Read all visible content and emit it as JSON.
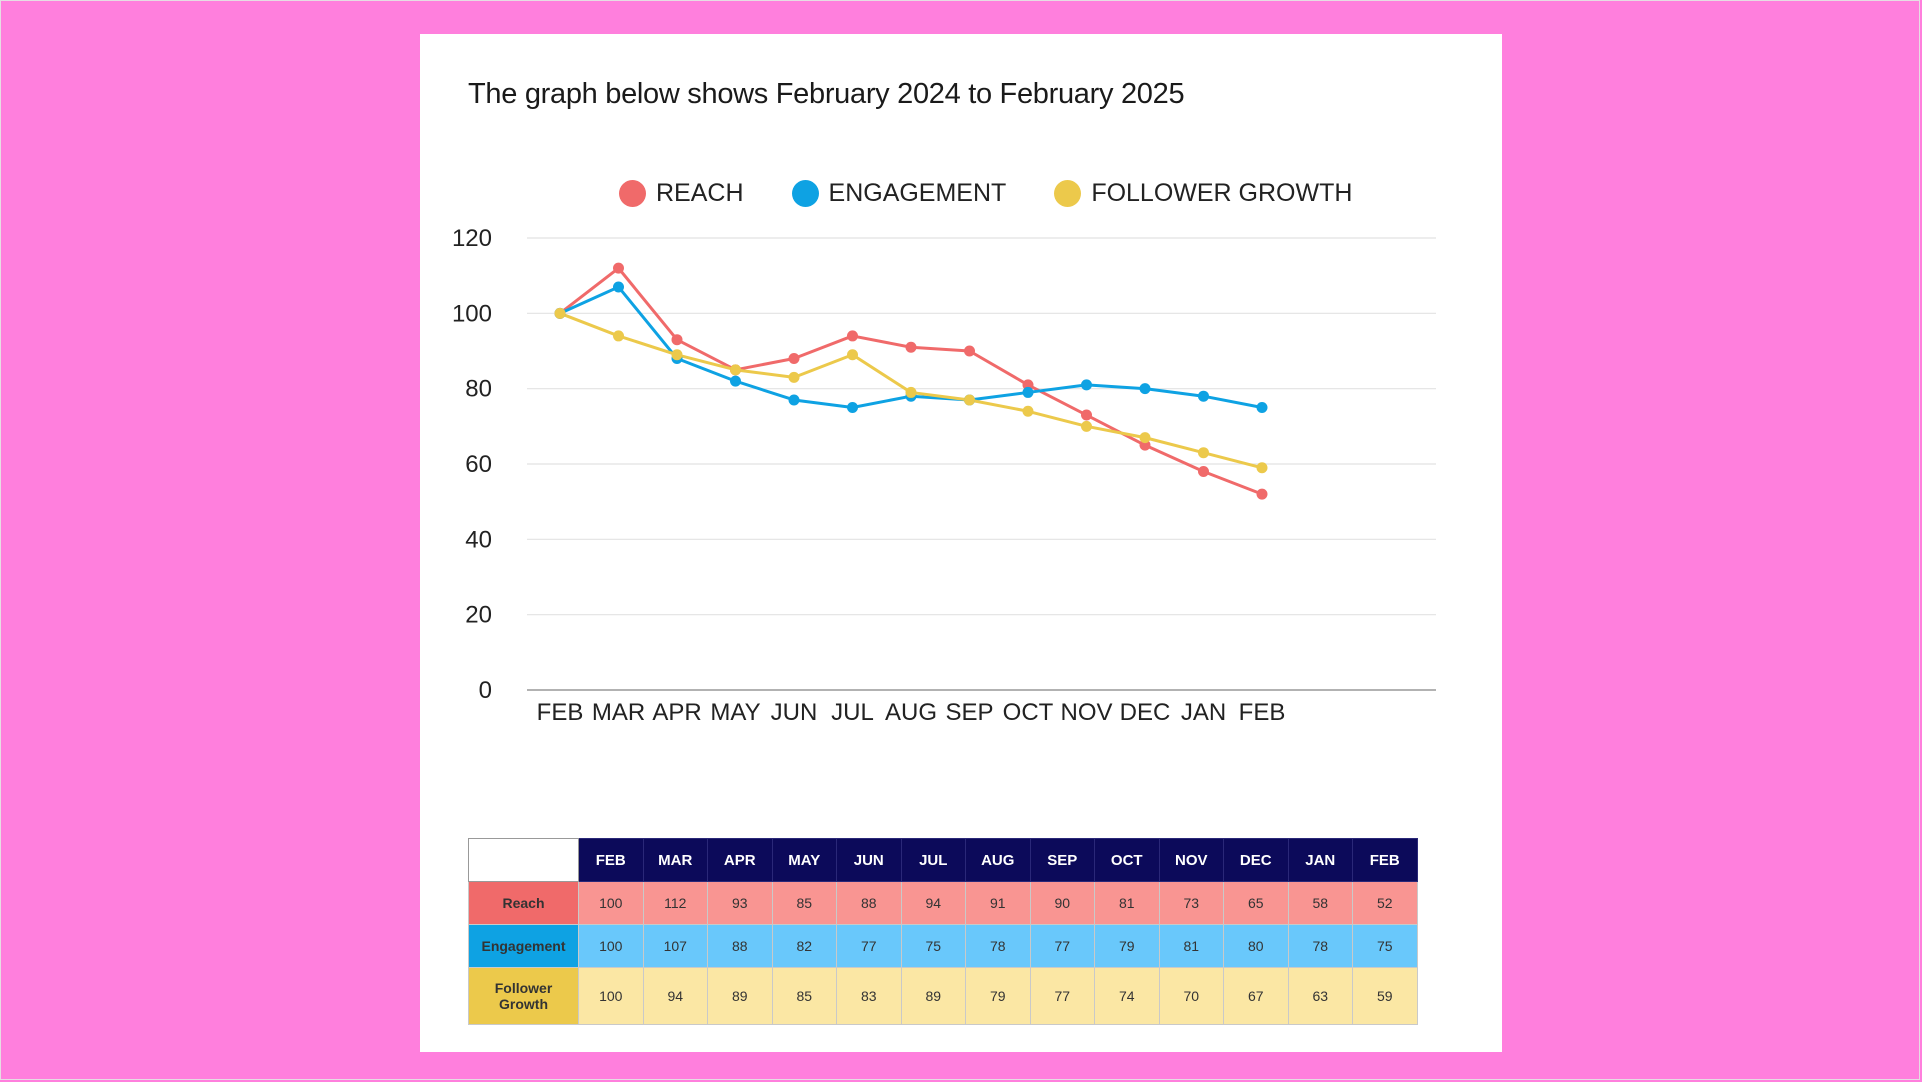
{
  "page": {
    "caption": "The graph below shows February 2024 to February 2025"
  },
  "colors": {
    "background": "#ff7fdd",
    "reach": "#f06a6a",
    "engagement": "#0ea2e3",
    "follower_growth": "#ecc94b",
    "table_header": "#0c0a5a",
    "reach_cell": "#f99592",
    "reach_label": "#f06a6a",
    "engagement_cell": "#69c8fb",
    "engagement_label": "#0ea2e3",
    "follower_cell": "#fbe7a4",
    "follower_label": "#ecc94b"
  },
  "legend": [
    {
      "label": "REACH",
      "color": "#f06a6a"
    },
    {
      "label": "ENGAGEMENT",
      "color": "#0ea2e3"
    },
    {
      "label": "FOLLOWER GROWTH",
      "color": "#ecc94b"
    }
  ],
  "chart_data": {
    "type": "line",
    "title": "",
    "xlabel": "",
    "ylabel": "",
    "ylim": [
      0,
      120
    ],
    "yticks": [
      0,
      20,
      40,
      60,
      80,
      100,
      120
    ],
    "grid": true,
    "legend_position": "top-center",
    "categories": [
      "FEB",
      "MAR",
      "APR",
      "MAY",
      "JUN",
      "JUL",
      "AUG",
      "SEP",
      "OCT",
      "NOV",
      "DEC",
      "JAN",
      "FEB"
    ],
    "series": [
      {
        "name": "REACH",
        "color": "#f06a6a",
        "values": [
          100,
          112,
          93,
          85,
          88,
          94,
          91,
          90,
          81,
          73,
          65,
          58,
          52
        ]
      },
      {
        "name": "ENGAGEMENT",
        "color": "#0ea2e3",
        "values": [
          100,
          107,
          88,
          82,
          77,
          75,
          78,
          77,
          79,
          81,
          80,
          78,
          75
        ]
      },
      {
        "name": "FOLLOWER GROWTH",
        "color": "#ecc94b",
        "values": [
          100,
          94,
          89,
          85,
          83,
          89,
          79,
          77,
          74,
          70,
          67,
          63,
          59
        ]
      }
    ]
  },
  "table": {
    "headers": [
      "FEB",
      "MAR",
      "APR",
      "MAY",
      "JUN",
      "JUL",
      "AUG",
      "SEP",
      "OCT",
      "NOV",
      "DEC",
      "JAN",
      "FEB"
    ],
    "rows": [
      {
        "label": "Reach",
        "label_color": "#f06a6a",
        "cell_color": "#f99592",
        "values": [
          "100",
          "112",
          "93",
          "85",
          "88",
          "94",
          "91",
          "90",
          "81",
          "73",
          "65",
          "58",
          "52"
        ]
      },
      {
        "label": "Engagement",
        "label_color": "#0ea2e3",
        "cell_color": "#69c8fb",
        "values": [
          "100",
          "107",
          "88",
          "82",
          "77",
          "75",
          "78",
          "77",
          "79",
          "81",
          "80",
          "78",
          "75"
        ]
      },
      {
        "label": "Follower\nGrowth",
        "label_color": "#ecc94b",
        "cell_color": "#fbe7a4",
        "values": [
          "100",
          "94",
          "89",
          "85",
          "83",
          "89",
          "79",
          "77",
          "74",
          "70",
          "67",
          "63",
          "59"
        ]
      }
    ]
  }
}
